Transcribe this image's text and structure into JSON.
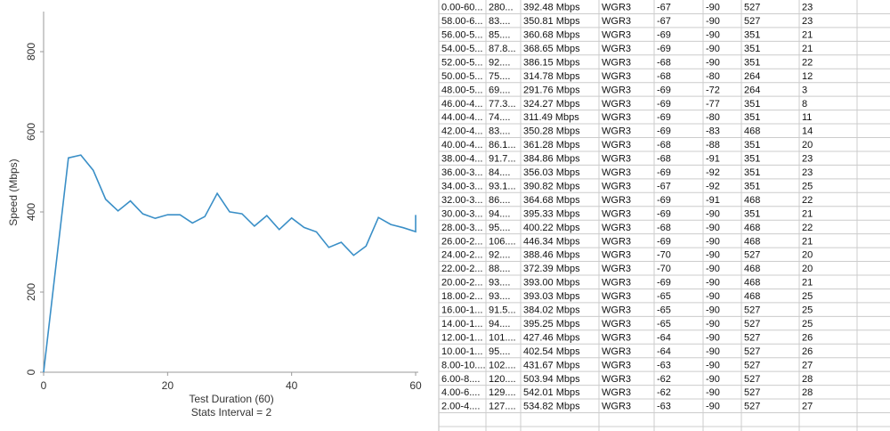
{
  "chart_data": {
    "type": "line",
    "ylabel": "Speed (Mbps)",
    "xlabel": "Test Duration (60)",
    "subtitle": "Stats Interval = 2",
    "color": "#3a8fc7",
    "x": [
      0,
      4,
      6,
      8,
      10,
      12,
      14,
      16,
      18,
      20,
      22,
      24,
      26,
      28,
      30,
      32,
      34,
      36,
      38,
      40,
      42,
      44,
      46,
      48,
      50,
      52,
      54,
      56,
      58,
      60,
      60
    ],
    "values": [
      0,
      534.82,
      542.01,
      503.94,
      431.67,
      402.54,
      427.46,
      395.25,
      384.02,
      393.03,
      393.0,
      372.39,
      388.46,
      446.34,
      400.22,
      395.33,
      364.68,
      390.82,
      356.03,
      384.86,
      361.28,
      350.28,
      311.49,
      324.27,
      291.76,
      314.78,
      386.15,
      368.65,
      360.68,
      350.81,
      392.48
    ],
    "xlim": [
      0,
      60
    ],
    "xticks": [
      0,
      20,
      40,
      60
    ],
    "ylim": [
      0,
      900
    ],
    "yticks": [
      0,
      200,
      400,
      600,
      800
    ]
  },
  "table": {
    "rows": [
      [
        "0.00-60...",
        "280...",
        "392.48 Mbps",
        "WGR3",
        "-67",
        "-90",
        "527",
        "23"
      ],
      [
        "58.00-6...",
        "83....",
        "350.81 Mbps",
        "WGR3",
        "-67",
        "-90",
        "527",
        "23"
      ],
      [
        "56.00-5...",
        "85....",
        "360.68 Mbps",
        "WGR3",
        "-69",
        "-90",
        "351",
        "21"
      ],
      [
        "54.00-5...",
        "87.8...",
        "368.65 Mbps",
        "WGR3",
        "-69",
        "-90",
        "351",
        "21"
      ],
      [
        "52.00-5...",
        "92....",
        "386.15 Mbps",
        "WGR3",
        "-68",
        "-90",
        "351",
        "22"
      ],
      [
        "50.00-5...",
        "75....",
        "314.78 Mbps",
        "WGR3",
        "-68",
        "-80",
        "264",
        "12"
      ],
      [
        "48.00-5...",
        "69....",
        "291.76 Mbps",
        "WGR3",
        "-69",
        "-72",
        "264",
        "3"
      ],
      [
        "46.00-4...",
        "77.3...",
        "324.27 Mbps",
        "WGR3",
        "-69",
        "-77",
        "351",
        "8"
      ],
      [
        "44.00-4...",
        "74....",
        "311.49 Mbps",
        "WGR3",
        "-69",
        "-80",
        "351",
        "11"
      ],
      [
        "42.00-4...",
        "83....",
        "350.28 Mbps",
        "WGR3",
        "-69",
        "-83",
        "468",
        "14"
      ],
      [
        "40.00-4...",
        "86.1...",
        "361.28 Mbps",
        "WGR3",
        "-68",
        "-88",
        "351",
        "20"
      ],
      [
        "38.00-4...",
        "91.7...",
        "384.86 Mbps",
        "WGR3",
        "-68",
        "-91",
        "351",
        "23"
      ],
      [
        "36.00-3...",
        "84....",
        "356.03 Mbps",
        "WGR3",
        "-69",
        "-92",
        "351",
        "23"
      ],
      [
        "34.00-3...",
        "93.1...",
        "390.82 Mbps",
        "WGR3",
        "-67",
        "-92",
        "351",
        "25"
      ],
      [
        "32.00-3...",
        "86....",
        "364.68 Mbps",
        "WGR3",
        "-69",
        "-91",
        "468",
        "22"
      ],
      [
        "30.00-3...",
        "94....",
        "395.33 Mbps",
        "WGR3",
        "-69",
        "-90",
        "351",
        "21"
      ],
      [
        "28.00-3...",
        "95....",
        "400.22 Mbps",
        "WGR3",
        "-68",
        "-90",
        "468",
        "22"
      ],
      [
        "26.00-2...",
        "106....",
        "446.34 Mbps",
        "WGR3",
        "-69",
        "-90",
        "468",
        "21"
      ],
      [
        "24.00-2...",
        "92....",
        "388.46 Mbps",
        "WGR3",
        "-70",
        "-90",
        "527",
        "20"
      ],
      [
        "22.00-2...",
        "88....",
        "372.39 Mbps",
        "WGR3",
        "-70",
        "-90",
        "468",
        "20"
      ],
      [
        "20.00-2...",
        "93....",
        "393.00 Mbps",
        "WGR3",
        "-69",
        "-90",
        "468",
        "21"
      ],
      [
        "18.00-2...",
        "93....",
        "393.03 Mbps",
        "WGR3",
        "-65",
        "-90",
        "468",
        "25"
      ],
      [
        "16.00-1...",
        "91.5...",
        "384.02 Mbps",
        "WGR3",
        "-65",
        "-90",
        "527",
        "25"
      ],
      [
        "14.00-1...",
        "94....",
        "395.25 Mbps",
        "WGR3",
        "-65",
        "-90",
        "527",
        "25"
      ],
      [
        "12.00-1...",
        "101....",
        "427.46 Mbps",
        "WGR3",
        "-64",
        "-90",
        "527",
        "26"
      ],
      [
        "10.00-1...",
        "95....",
        "402.54 Mbps",
        "WGR3",
        "-64",
        "-90",
        "527",
        "26"
      ],
      [
        "8.00-10....",
        "102....",
        "431.67 Mbps",
        "WGR3",
        "-63",
        "-90",
        "527",
        "27"
      ],
      [
        "6.00-8....",
        "120....",
        "503.94 Mbps",
        "WGR3",
        "-62",
        "-90",
        "527",
        "28"
      ],
      [
        "4.00-6....",
        "129....",
        "542.01 Mbps",
        "WGR3",
        "-62",
        "-90",
        "527",
        "28"
      ],
      [
        "2.00-4....",
        "127....",
        "534.82 Mbps",
        "WGR3",
        "-63",
        "-90",
        "527",
        "27"
      ]
    ]
  }
}
